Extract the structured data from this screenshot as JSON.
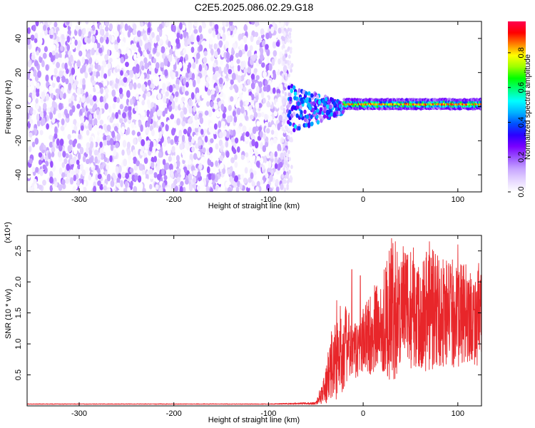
{
  "title": "C2E5.2025.086.02.29.G18",
  "chart_data": [
    {
      "type": "heatmap",
      "xlabel": "Height of straight line (km)",
      "ylabel": "Frequency (Hz)",
      "xlim": [
        -355,
        125
      ],
      "ylim": [
        -50,
        50
      ],
      "xticks": [
        -300,
        -200,
        -100,
        0,
        100
      ],
      "yticks": [
        -40,
        -20,
        0,
        20,
        40
      ],
      "colorbar": {
        "label": "Normalized spectral amplitude",
        "range": [
          0,
          0.98
        ],
        "ticks": [
          0.0,
          0.2,
          0.4,
          0.6,
          0.8
        ],
        "colors": [
          "#ffffff",
          "#e6d7ff",
          "#c8a6ff",
          "#9b55ff",
          "#7a00ff",
          "#2b00ff",
          "#0050ff",
          "#00b4ff",
          "#00ffff",
          "#00ff7f",
          "#00ff00",
          "#9cff00",
          "#ffff00",
          "#ff8000",
          "#ff0000",
          "#ff0050"
        ]
      },
      "regions": [
        {
          "description_level": "noise",
          "x_range": [
            -355,
            -80
          ],
          "freq_range": [
            -50,
            50
          ],
          "amplitude_range": [
            0.0,
            0.2
          ]
        },
        {
          "description_level": "transition",
          "x_range": [
            -80,
            -20
          ],
          "freq_range": [
            -20,
            15
          ],
          "amplitude_range": [
            0.1,
            0.5
          ]
        },
        {
          "description_level": "carrier",
          "x_range": [
            -20,
            125
          ],
          "freq_center": 1.5,
          "freq_halfwidth": 3,
          "amplitude_range": [
            0.4,
            0.95
          ]
        }
      ]
    },
    {
      "type": "line",
      "xlabel": "Height of straight line (km)",
      "ylabel": "SNR (10 * v/v)",
      "yscale_label": "(x10⁴)",
      "xlim": [
        -355,
        125
      ],
      "ylim": [
        0,
        2.75
      ],
      "xticks": [
        -300,
        -200,
        -100,
        0,
        100
      ],
      "yticks": [
        0.5,
        1.0,
        1.5,
        2.0,
        2.5
      ],
      "color": "#e8262a",
      "envelope": {
        "x": [
          -355,
          -300,
          -200,
          -100,
          -50,
          -40,
          -35,
          -30,
          -25,
          -20,
          -15,
          -10,
          -5,
          0,
          10,
          20,
          30,
          40,
          50,
          60,
          70,
          80,
          90,
          100,
          110,
          120,
          125
        ],
        "y": [
          0.03,
          0.03,
          0.03,
          0.03,
          0.04,
          0.3,
          0.55,
          0.75,
          0.85,
          1.0,
          0.95,
          0.85,
          0.95,
          1.05,
          1.2,
          1.35,
          1.5,
          1.6,
          1.55,
          1.5,
          1.6,
          1.55,
          1.5,
          1.45,
          1.5,
          1.4,
          1.5
        ],
        "spread": [
          0.005,
          0.005,
          0.005,
          0.005,
          0.02,
          0.25,
          0.55,
          0.7,
          0.75,
          0.7,
          0.55,
          0.45,
          0.5,
          0.55,
          0.7,
          0.8,
          1.15,
          1.0,
          0.95,
          0.9,
          1.1,
          0.95,
          0.9,
          0.85,
          0.8,
          0.75,
          0.8
        ]
      },
      "peaks": [
        {
          "x": 30,
          "y": 2.7
        },
        {
          "x": 34,
          "y": 2.65
        },
        {
          "x": 70,
          "y": 2.65
        },
        {
          "x": 53,
          "y": 2.55
        },
        {
          "x": 100,
          "y": 2.6
        },
        {
          "x": 122,
          "y": 2.3
        },
        {
          "x": -12,
          "y": 2.2
        },
        {
          "x": -3,
          "y": 2.1
        },
        {
          "x": -28,
          "y": 1.7
        }
      ]
    }
  ]
}
